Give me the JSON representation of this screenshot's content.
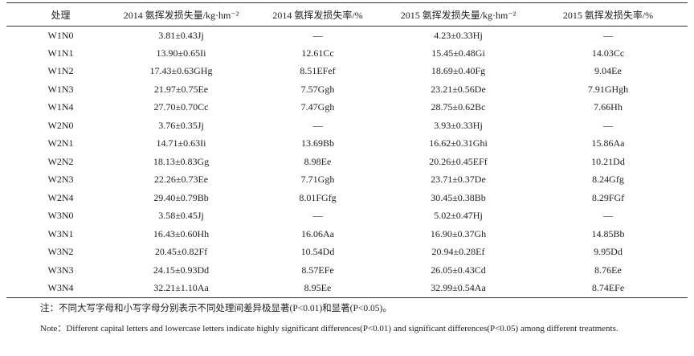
{
  "table": {
    "header": [
      "处理",
      "2014 氨挥发损失量/kg·hm⁻²",
      "2014 氨挥发损失率/%",
      "2015 氨挥发损失量/kg·hm⁻²",
      "2015 氨挥发损失率/%"
    ],
    "rows": [
      [
        "W1N0",
        "3.81±0.43Jj",
        "—",
        "4.23±0.33Hj",
        "—"
      ],
      [
        "W1N1",
        "13.90±0.65Ii",
        "12.61Cc",
        "15.45±0.48Gi",
        "14.03Cc"
      ],
      [
        "W1N2",
        "17.43±0.63GHg",
        "8.51EFef",
        "18.69±0.40Fg",
        "9.04Ee"
      ],
      [
        "W1N3",
        "21.97±0.75Ee",
        "7.57Ggh",
        "23.21±0.56De",
        "7.91GHgh"
      ],
      [
        "W1N4",
        "27.70±0.70Cc",
        "7.47Ggh",
        "28.75±0.62Bc",
        "7.66Hh"
      ],
      [
        "W2N0",
        "3.76±0.35Jj",
        "—",
        "3.93±0.33Hj",
        "—"
      ],
      [
        "W2N1",
        "14.71±0.63Ii",
        "13.69Bb",
        "16.62±0.31Ghi",
        "15.86Aa"
      ],
      [
        "W2N2",
        "18.13±0.83Gg",
        "8.98Ee",
        "20.26±0.45EFf",
        "10.21Dd"
      ],
      [
        "W2N3",
        "22.26±0.73Ee",
        "7.71Ggh",
        "23.71±0.37De",
        "8.24Gfg"
      ],
      [
        "W2N4",
        "29.40±0.79Bb",
        "8.01FGfg",
        "30.45±0.38Bb",
        "8.29FGf"
      ],
      [
        "W3N0",
        "3.58±0.45Jj",
        "—",
        "5.02±0.47Hj",
        "—"
      ],
      [
        "W3N1",
        "16.43±0.60Hh",
        "16.06Aa",
        "16.90±0.37Gh",
        "14.85Bb"
      ],
      [
        "W3N2",
        "20.45±0.82Ff",
        "10.54Dd",
        "20.94±0.28Ef",
        "9.95Dd"
      ],
      [
        "W3N3",
        "24.15±0.93Dd",
        "8.57EFe",
        "26.05±0.43Cd",
        "8.76Ee"
      ],
      [
        "W3N4",
        "32.21±1.10Aa",
        "8.95Ee",
        "32.99±0.54Aa",
        "8.74EFe"
      ]
    ]
  },
  "notes": [
    "注：不同大写字母和小写字母分别表示不同处理间差异极显著(P<0.01)和显著(P<0.05)。",
    "Note：Different capital letters and lowercase letters indicate highly significant differences(P<0.01) and significant differences(P<0.05) among different treatments."
  ]
}
